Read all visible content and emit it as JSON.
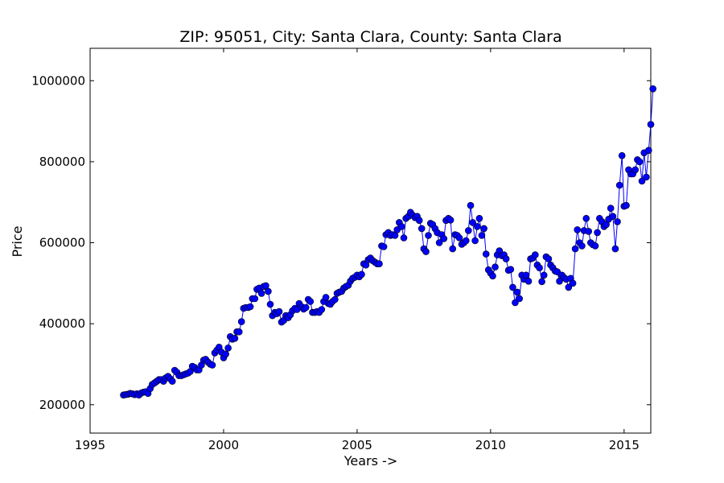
{
  "chart_data": {
    "type": "line",
    "title": "ZIP: 95051, City: Santa Clara, County: Santa Clara",
    "xlabel": "Years ->",
    "ylabel": "Price",
    "xlim": [
      1995,
      2016
    ],
    "ylim": [
      130000,
      1080000
    ],
    "xticks": [
      1995,
      2000,
      2005,
      2010,
      2015
    ],
    "yticks": [
      200000,
      400000,
      600000,
      800000,
      1000000
    ],
    "grid": false,
    "legend": "none",
    "line_color": "#0000ff",
    "marker_color": "#0000ff",
    "series": [
      {
        "points": [
          [
            1996.25,
            224000
          ],
          [
            1996.33,
            225000
          ],
          [
            1996.42,
            226000
          ],
          [
            1996.5,
            228000
          ],
          [
            1996.58,
            227000
          ],
          [
            1996.67,
            225000
          ],
          [
            1996.75,
            227000
          ],
          [
            1996.83,
            224000
          ],
          [
            1996.92,
            229000
          ],
          [
            1997.0,
            231000
          ],
          [
            1997.08,
            232000
          ],
          [
            1997.17,
            228000
          ],
          [
            1997.25,
            240000
          ],
          [
            1997.33,
            250000
          ],
          [
            1997.42,
            254000
          ],
          [
            1997.5,
            258000
          ],
          [
            1997.58,
            262000
          ],
          [
            1997.67,
            262000
          ],
          [
            1997.75,
            258000
          ],
          [
            1997.83,
            266000
          ],
          [
            1997.92,
            270000
          ],
          [
            1998.0,
            264000
          ],
          [
            1998.08,
            258000
          ],
          [
            1998.17,
            285000
          ],
          [
            1998.25,
            280000
          ],
          [
            1998.33,
            272000
          ],
          [
            1998.42,
            272000
          ],
          [
            1998.5,
            274000
          ],
          [
            1998.58,
            276000
          ],
          [
            1998.67,
            278000
          ],
          [
            1998.75,
            282000
          ],
          [
            1998.83,
            295000
          ],
          [
            1998.92,
            292000
          ],
          [
            1999.0,
            286000
          ],
          [
            1999.08,
            286000
          ],
          [
            1999.17,
            298000
          ],
          [
            1999.25,
            310000
          ],
          [
            1999.33,
            312000
          ],
          [
            1999.42,
            305000
          ],
          [
            1999.5,
            300000
          ],
          [
            1999.58,
            298000
          ],
          [
            1999.67,
            328000
          ],
          [
            1999.75,
            335000
          ],
          [
            1999.83,
            342000
          ],
          [
            1999.92,
            330000
          ],
          [
            2000.0,
            316000
          ],
          [
            2000.08,
            325000
          ],
          [
            2000.17,
            340000
          ],
          [
            2000.25,
            368000
          ],
          [
            2000.33,
            362000
          ],
          [
            2000.42,
            364000
          ],
          [
            2000.5,
            380000
          ],
          [
            2000.58,
            380000
          ],
          [
            2000.67,
            405000
          ],
          [
            2000.75,
            438000
          ],
          [
            2000.83,
            440000
          ],
          [
            2000.92,
            440000
          ],
          [
            2001.0,
            442000
          ],
          [
            2001.08,
            462000
          ],
          [
            2001.17,
            462000
          ],
          [
            2001.25,
            485000
          ],
          [
            2001.33,
            488000
          ],
          [
            2001.42,
            475000
          ],
          [
            2001.5,
            492000
          ],
          [
            2001.58,
            494000
          ],
          [
            2001.67,
            480000
          ],
          [
            2001.75,
            448000
          ],
          [
            2001.83,
            420000
          ],
          [
            2001.92,
            428000
          ],
          [
            2002.0,
            425000
          ],
          [
            2002.08,
            430000
          ],
          [
            2002.17,
            404000
          ],
          [
            2002.25,
            408000
          ],
          [
            2002.33,
            420000
          ],
          [
            2002.42,
            415000
          ],
          [
            2002.5,
            422000
          ],
          [
            2002.58,
            432000
          ],
          [
            2002.67,
            438000
          ],
          [
            2002.75,
            435000
          ],
          [
            2002.83,
            450000
          ],
          [
            2002.92,
            442000
          ],
          [
            2003.0,
            436000
          ],
          [
            2003.08,
            440000
          ],
          [
            2003.17,
            460000
          ],
          [
            2003.25,
            455000
          ],
          [
            2003.33,
            428000
          ],
          [
            2003.42,
            428000
          ],
          [
            2003.5,
            430000
          ],
          [
            2003.58,
            428000
          ],
          [
            2003.67,
            435000
          ],
          [
            2003.75,
            455000
          ],
          [
            2003.83,
            465000
          ],
          [
            2003.92,
            450000
          ],
          [
            2004.0,
            448000
          ],
          [
            2004.08,
            455000
          ],
          [
            2004.17,
            460000
          ],
          [
            2004.25,
            475000
          ],
          [
            2004.33,
            478000
          ],
          [
            2004.42,
            480000
          ],
          [
            2004.5,
            488000
          ],
          [
            2004.58,
            492000
          ],
          [
            2004.67,
            495000
          ],
          [
            2004.75,
            505000
          ],
          [
            2004.83,
            512000
          ],
          [
            2004.92,
            515000
          ],
          [
            2005.0,
            520000
          ],
          [
            2005.08,
            516000
          ],
          [
            2005.17,
            522000
          ],
          [
            2005.25,
            548000
          ],
          [
            2005.33,
            545000
          ],
          [
            2005.42,
            558000
          ],
          [
            2005.5,
            562000
          ],
          [
            2005.58,
            556000
          ],
          [
            2005.67,
            552000
          ],
          [
            2005.75,
            548000
          ],
          [
            2005.83,
            548000
          ],
          [
            2005.92,
            592000
          ],
          [
            2006.0,
            590000
          ],
          [
            2006.08,
            620000
          ],
          [
            2006.17,
            625000
          ],
          [
            2006.25,
            618000
          ],
          [
            2006.33,
            620000
          ],
          [
            2006.42,
            618000
          ],
          [
            2006.5,
            632000
          ],
          [
            2006.58,
            650000
          ],
          [
            2006.67,
            640000
          ],
          [
            2006.75,
            612000
          ],
          [
            2006.83,
            660000
          ],
          [
            2006.92,
            665000
          ],
          [
            2007.0,
            675000
          ],
          [
            2007.08,
            668000
          ],
          [
            2007.17,
            662000
          ],
          [
            2007.25,
            665000
          ],
          [
            2007.33,
            655000
          ],
          [
            2007.42,
            635000
          ],
          [
            2007.5,
            585000
          ],
          [
            2007.58,
            578000
          ],
          [
            2007.67,
            618000
          ],
          [
            2007.75,
            648000
          ],
          [
            2007.83,
            645000
          ],
          [
            2007.92,
            635000
          ],
          [
            2008.0,
            625000
          ],
          [
            2008.08,
            600000
          ],
          [
            2008.17,
            620000
          ],
          [
            2008.25,
            610000
          ],
          [
            2008.33,
            655000
          ],
          [
            2008.42,
            660000
          ],
          [
            2008.5,
            656000
          ],
          [
            2008.58,
            585000
          ],
          [
            2008.67,
            620000
          ],
          [
            2008.75,
            618000
          ],
          [
            2008.83,
            612000
          ],
          [
            2008.92,
            596000
          ],
          [
            2009.0,
            600000
          ],
          [
            2009.08,
            605000
          ],
          [
            2009.17,
            630000
          ],
          [
            2009.25,
            692000
          ],
          [
            2009.33,
            650000
          ],
          [
            2009.42,
            605000
          ],
          [
            2009.5,
            640000
          ],
          [
            2009.58,
            660000
          ],
          [
            2009.67,
            618000
          ],
          [
            2009.75,
            635000
          ],
          [
            2009.83,
            572000
          ],
          [
            2009.92,
            533000
          ],
          [
            2010.0,
            525000
          ],
          [
            2010.08,
            518000
          ],
          [
            2010.17,
            540000
          ],
          [
            2010.25,
            570000
          ],
          [
            2010.33,
            580000
          ],
          [
            2010.42,
            568000
          ],
          [
            2010.5,
            570000
          ],
          [
            2010.58,
            560000
          ],
          [
            2010.67,
            532000
          ],
          [
            2010.75,
            534000
          ],
          [
            2010.83,
            490000
          ],
          [
            2010.92,
            452000
          ],
          [
            2011.0,
            478000
          ],
          [
            2011.08,
            462000
          ],
          [
            2011.17,
            520000
          ],
          [
            2011.25,
            510000
          ],
          [
            2011.33,
            520000
          ],
          [
            2011.42,
            505000
          ],
          [
            2011.5,
            560000
          ],
          [
            2011.58,
            562000
          ],
          [
            2011.67,
            570000
          ],
          [
            2011.75,
            545000
          ],
          [
            2011.83,
            538000
          ],
          [
            2011.92,
            504000
          ],
          [
            2012.0,
            520000
          ],
          [
            2012.08,
            565000
          ],
          [
            2012.17,
            560000
          ],
          [
            2012.25,
            545000
          ],
          [
            2012.33,
            538000
          ],
          [
            2012.42,
            530000
          ],
          [
            2012.5,
            528000
          ],
          [
            2012.58,
            505000
          ],
          [
            2012.67,
            520000
          ],
          [
            2012.75,
            514000
          ],
          [
            2012.83,
            510000
          ],
          [
            2012.92,
            490000
          ],
          [
            2013.0,
            512000
          ],
          [
            2013.08,
            500000
          ],
          [
            2013.17,
            585000
          ],
          [
            2013.25,
            632000
          ],
          [
            2013.33,
            600000
          ],
          [
            2013.42,
            592000
          ],
          [
            2013.5,
            630000
          ],
          [
            2013.58,
            660000
          ],
          [
            2013.67,
            628000
          ],
          [
            2013.75,
            600000
          ],
          [
            2013.83,
            595000
          ],
          [
            2013.92,
            592000
          ],
          [
            2014.0,
            625000
          ],
          [
            2014.08,
            660000
          ],
          [
            2014.17,
            652000
          ],
          [
            2014.25,
            640000
          ],
          [
            2014.33,
            645000
          ],
          [
            2014.42,
            658000
          ],
          [
            2014.5,
            685000
          ],
          [
            2014.58,
            665000
          ],
          [
            2014.67,
            585000
          ],
          [
            2014.75,
            652000
          ],
          [
            2014.83,
            742000
          ],
          [
            2014.92,
            815000
          ],
          [
            2015.0,
            690000
          ],
          [
            2015.08,
            692000
          ],
          [
            2015.17,
            780000
          ],
          [
            2015.25,
            770000
          ],
          [
            2015.33,
            770000
          ],
          [
            2015.42,
            780000
          ],
          [
            2015.5,
            805000
          ],
          [
            2015.58,
            800000
          ],
          [
            2015.67,
            752000
          ],
          [
            2015.75,
            822000
          ],
          [
            2015.83,
            762000
          ],
          [
            2015.92,
            828000
          ],
          [
            2016.0,
            892000
          ],
          [
            2016.08,
            980000
          ]
        ]
      }
    ]
  }
}
